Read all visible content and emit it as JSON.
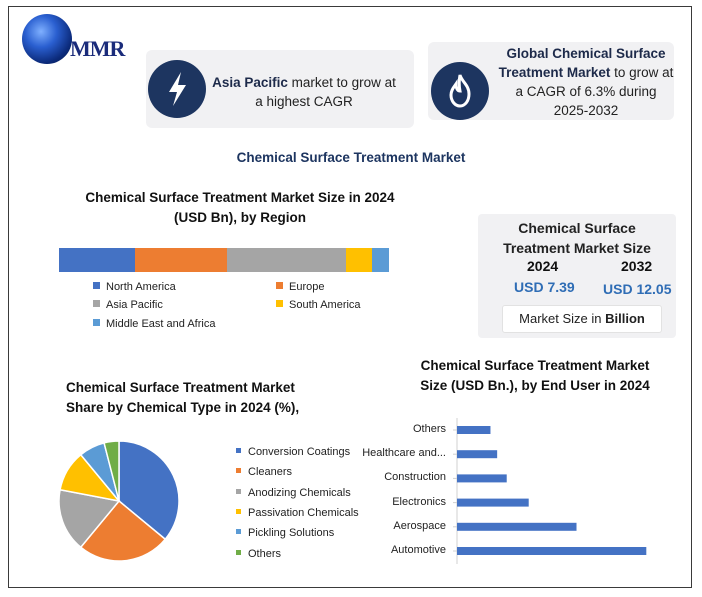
{
  "logo": {
    "text": "MMR"
  },
  "cards": [
    {
      "bold": "Asia Pacific",
      "rest": " market to grow at a highest CAGR",
      "icon": "lightning-icon"
    },
    {
      "bold": "Global Chemical Surface Treatment Market",
      "rest": " to grow at a CAGR of 6.3% during 2025-2032",
      "icon": "flame-icon"
    }
  ],
  "main_title": "Chemical Surface Treatment Market",
  "region": {
    "title_line1": "Chemical Surface Treatment Market Size  in 2024",
    "title_line2": "(USD Bn), by Region"
  },
  "size_box": {
    "title_line1": "Chemical Surface",
    "title_line2": "Treatment Market Size",
    "year_2024": "2024",
    "year_2032": "2032",
    "value_2024": "USD 7.39",
    "value_2032": "USD 12.05",
    "unit_prefix": "Market Size in ",
    "unit_bold": "Billion"
  },
  "pie": {
    "title_line1": "Chemical Surface Treatment Market",
    "title_line2": "Share by Chemical Type in 2024 (%),"
  },
  "end_user": {
    "title_line1": "Chemical Surface Treatment Market",
    "title_line2": "Size (USD Bn.), by  End User in 2024"
  },
  "chart_data": [
    {
      "type": "bar",
      "stacked": true,
      "orientation": "horizontal",
      "series": [
        {
          "name": "North America",
          "value": 23,
          "color": "#4472c4"
        },
        {
          "name": "Europe",
          "value": 28,
          "color": "#ed7d31"
        },
        {
          "name": "Asia Pacific",
          "value": 36,
          "color": "#a5a5a5"
        },
        {
          "name": "South America",
          "value": 8,
          "color": "#ffc000"
        },
        {
          "name": "Middle East and Africa",
          "value": 5,
          "color": "#5b9bd5"
        }
      ],
      "legend": "bottom"
    },
    {
      "type": "pie",
      "categories": [
        "Conversion Coatings",
        "Cleaners",
        "Anodizing Chemicals",
        "Passivation Chemicals",
        "Pickling Solutions",
        "Others"
      ],
      "values": [
        36,
        25,
        17,
        11,
        7,
        4
      ],
      "colors": [
        "#4472c4",
        "#ed7d31",
        "#a5a5a5",
        "#ffc000",
        "#5b9bd5",
        "#70ad47"
      ],
      "legend": "right"
    },
    {
      "type": "bar",
      "orientation": "horizontal",
      "categories": [
        "Others",
        "Healthcare and...",
        "Construction",
        "Electronics",
        "Aerospace",
        "Automotive"
      ],
      "values": [
        0.35,
        0.42,
        0.52,
        0.75,
        1.25,
        1.98
      ],
      "color": "#4472c4"
    }
  ]
}
